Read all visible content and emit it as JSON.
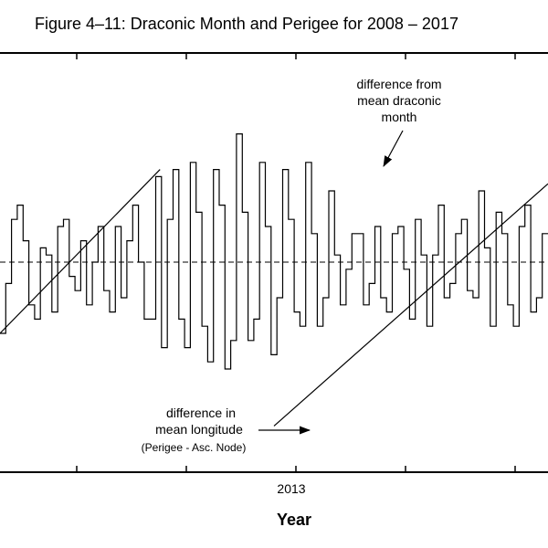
{
  "chart_data": {
    "type": "line",
    "title": "Figure 4–11: Draconic Month and Perigee for 2008 – 2017",
    "xlabel": "Year",
    "ylabel": "",
    "x_tick_labels": [
      "2013"
    ],
    "x_ticks": [
      2011,
      2012,
      2013,
      2014,
      2015
    ],
    "xlim": [
      2010.3,
      2015.3
    ],
    "reference_line": 0,
    "series": [
      {
        "style": "step",
        "values": [
          -1.0,
          -0.3,
          0.6,
          0.8,
          0.3,
          -0.6,
          -0.8,
          0.2,
          0.1,
          -0.7,
          0.5,
          0.6,
          -0.2,
          -0.4,
          0.3,
          -0.6,
          0.0,
          0.5,
          -0.4,
          -0.7,
          0.5,
          -0.5,
          0.3,
          0.8,
          0.0,
          -0.8,
          -0.8,
          1.2,
          -1.2,
          0.6,
          1.3,
          -0.8,
          -1.2,
          1.4,
          0.7,
          -0.9,
          -1.4,
          1.3,
          0.8,
          -1.5,
          -1.1,
          1.8,
          0.7,
          -1.1,
          -0.8,
          1.4,
          0.5,
          -1.3,
          -0.5,
          1.3,
          0.6,
          -0.7,
          -0.9,
          1.4,
          0.4,
          -0.9,
          -0.5,
          1.0,
          0.1,
          -0.6,
          -0.1,
          0.4,
          0.4,
          -0.6,
          -0.3,
          0.5,
          -0.5,
          -0.7,
          0.4,
          0.5,
          -0.1,
          -0.8,
          0.6,
          0.1,
          -0.9,
          0.1,
          0.8,
          -0.5,
          -0.3,
          0.4,
          0.6,
          -0.4,
          -0.5,
          1.0,
          0.2,
          -0.9,
          0.7,
          0.4,
          -0.6,
          -0.9,
          0.5,
          0.8,
          -0.7,
          -0.5,
          0.4
        ]
      },
      {
        "style": "line",
        "values": [
          -1.0,
          1.3
        ]
      },
      {
        "style": "line",
        "values": [
          -2.3,
          1.1
        ]
      }
    ],
    "annotations": [
      {
        "lines": [
          "difference from",
          "mean draconic",
          "month"
        ]
      },
      {
        "lines": [
          "difference in",
          "mean longitude"
        ]
      },
      {
        "lines": [
          "(Perigee - Asc. Node)"
        ]
      }
    ]
  }
}
